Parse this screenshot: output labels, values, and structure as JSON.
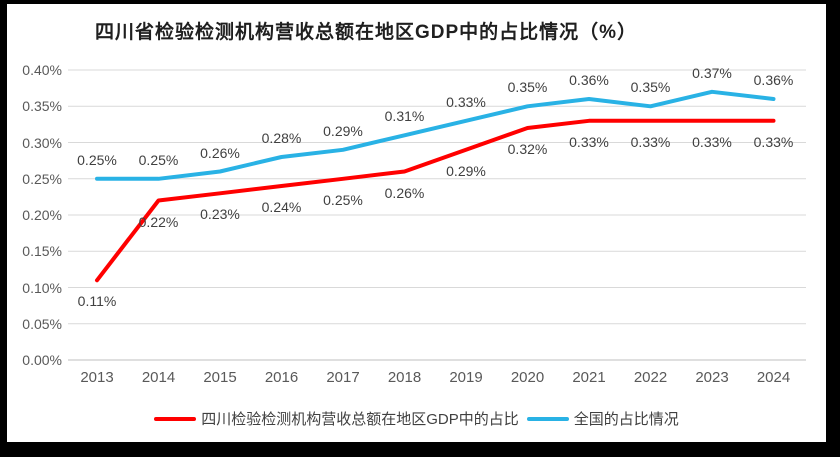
{
  "frame_color": "#000000",
  "panel_color": "#FFFFFF",
  "chart_data": {
    "type": "line",
    "title": "四川省检验检测机构营收总额在地区GDP中的占比情况（%）",
    "categories": [
      "2013",
      "2014",
      "2015",
      "2016",
      "2017",
      "2018",
      "2019",
      "2020",
      "2021",
      "2022",
      "2023",
      "2024"
    ],
    "series": [
      {
        "name": "四川检验检测机构营收总额在地区GDP中的占比",
        "color": "#FF0000",
        "values": [
          0.11,
          0.22,
          0.23,
          0.24,
          0.25,
          0.26,
          0.29,
          0.32,
          0.33,
          0.33,
          0.33,
          0.33
        ],
        "labels": [
          "0.11%",
          "0.22%",
          "0.23%",
          "0.24%",
          "0.25%",
          "0.26%",
          "0.29%",
          "0.32%",
          "0.33%",
          "0.33%",
          "0.33%",
          "0.33%"
        ],
        "label_position": "below"
      },
      {
        "name": "全国的占比情况",
        "color": "#29B2E5",
        "values": [
          0.25,
          0.25,
          0.26,
          0.28,
          0.29,
          0.31,
          0.33,
          0.35,
          0.36,
          0.35,
          0.37,
          0.36
        ],
        "labels": [
          "0.25%",
          "0.25%",
          "0.26%",
          "0.28%",
          "0.29%",
          "0.31%",
          "0.33%",
          "0.35%",
          "0.36%",
          "0.35%",
          "0.37%",
          "0.36%"
        ],
        "label_position": "above"
      }
    ],
    "ylim": [
      0,
      0.4
    ],
    "yticks": [
      "0.40%",
      "0.35%",
      "0.30%",
      "0.25%",
      "0.20%",
      "0.15%",
      "0.10%",
      "0.05%",
      "0.00%"
    ],
    "grid": true,
    "grid_color": "#D9D9D9",
    "axis_line_color": "#BFBFBF",
    "legend_position": "bottom"
  }
}
